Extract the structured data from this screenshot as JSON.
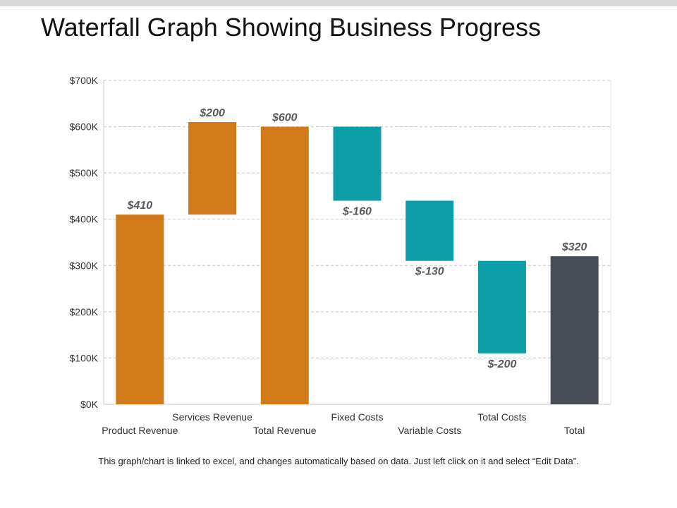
{
  "title": "Waterfall Graph Showing Business Progress",
  "footnote": "This graph/chart is linked to excel, and changes automatically based on data. Just left click on it and select “Edit Data”.",
  "colors": {
    "revenue": "#d07a1a",
    "cost": "#0c9ea6",
    "total": "#474e58",
    "grid": "#c8c8c8",
    "axis": "#c8c8c8",
    "label": "#595959",
    "tick": "#333333"
  },
  "chart_data": {
    "type": "bar",
    "subtype": "waterfall",
    "categories": [
      "Product Revenue",
      "Services Revenue",
      "Total Revenue",
      "Fixed Costs",
      "Variable Costs",
      "Total Costs",
      "Total"
    ],
    "values": [
      410,
      200,
      600,
      -160,
      -130,
      -200,
      320
    ],
    "bar_bottoms": [
      0,
      410,
      0,
      440,
      310,
      110,
      0
    ],
    "bar_tops": [
      410,
      610,
      600,
      600,
      440,
      310,
      320
    ],
    "data_labels": [
      "$410",
      "$200",
      "$600",
      "$-160",
      "$-130",
      "$-200",
      "$320"
    ],
    "bar_kind": [
      "revenue",
      "revenue",
      "revenue",
      "cost",
      "cost",
      "cost",
      "total"
    ],
    "ylim": [
      0,
      700
    ],
    "yticks": [
      0,
      100,
      200,
      300,
      400,
      500,
      600,
      700
    ],
    "ytick_labels": [
      "$0K",
      "$100K",
      "$200K",
      "$300K",
      "$400K",
      "$500K",
      "$600K",
      "$700K"
    ],
    "grid": true,
    "legend": "none"
  }
}
